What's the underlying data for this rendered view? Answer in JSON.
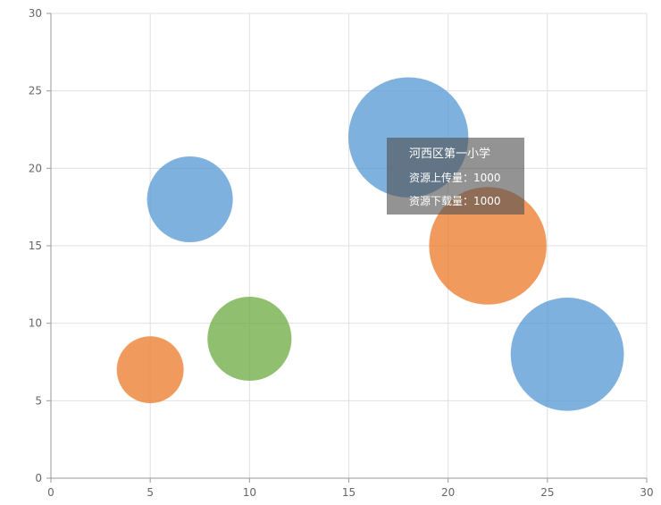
{
  "chart_data": {
    "type": "scatter",
    "title": "",
    "xlabel": "",
    "ylabel": "",
    "xlim": [
      0,
      30
    ],
    "ylim": [
      0,
      30
    ],
    "x_ticks": [
      0,
      5,
      10,
      15,
      20,
      25,
      30
    ],
    "y_ticks": [
      0,
      5,
      10,
      15,
      20,
      25,
      30
    ],
    "grid": true,
    "bubble": true,
    "points": [
      {
        "x": 7,
        "y": 18,
        "size": 1.0,
        "color": "#5b9bd5"
      },
      {
        "x": 18,
        "y": 22,
        "size": 1.4,
        "color": "#5b9bd5"
      },
      {
        "x": 26,
        "y": 8,
        "size": 1.32,
        "color": "#5b9bd5"
      },
      {
        "x": 5,
        "y": 7,
        "size": 0.78,
        "color": "#ed7d31"
      },
      {
        "x": 22,
        "y": 15,
        "size": 1.37,
        "color": "#ed7d31"
      },
      {
        "x": 10,
        "y": 9,
        "size": 0.98,
        "color": "#70ad47"
      }
    ]
  },
  "tooltip": {
    "title": "河西区第一小学",
    "upload": "资源上传量：1000",
    "download": "资源下载量：1000"
  },
  "colors": {
    "grid": "#e0e0e0",
    "axis": "#999999",
    "tooltip_bg": "rgba(80,80,80,0.62)"
  }
}
